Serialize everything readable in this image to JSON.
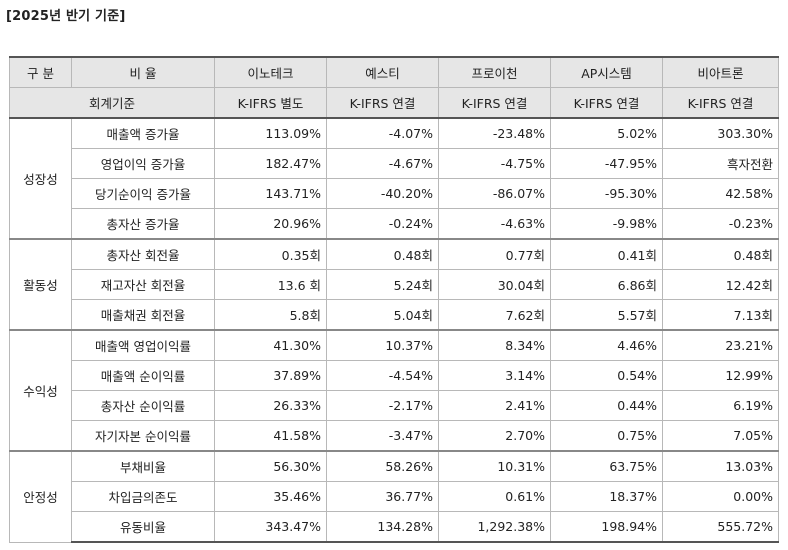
{
  "caption": "[2025년 반기 기준]",
  "header": {
    "group_col": "구 분",
    "ratio_col": "비 율",
    "companies": [
      "이노테크",
      "예스티",
      "프로이천",
      "AP시스템",
      "비아트론"
    ]
  },
  "subheader": {
    "label": "회계기준",
    "standards": [
      "K-IFRS 별도",
      "K-IFRS 연결",
      "K-IFRS 연결",
      "K-IFRS 연결",
      "K-IFRS 연결"
    ]
  },
  "groups": [
    {
      "name": "성장성",
      "rows": [
        {
          "label": "매출액 증가율",
          "values": [
            "113.09%",
            "-4.07%",
            "-23.48%",
            "5.02%",
            "303.30%"
          ]
        },
        {
          "label": "영업이익 증가율",
          "values": [
            "182.47%",
            "-4.67%",
            "-4.75%",
            "-47.95%",
            "흑자전환"
          ]
        },
        {
          "label": "당기순이익 증가율",
          "values": [
            "143.71%",
            "-40.20%",
            "-86.07%",
            "-95.30%",
            "42.58%"
          ]
        },
        {
          "label": "총자산 증가율",
          "values": [
            "20.96%",
            "-0.24%",
            "-4.63%",
            "-9.98%",
            "-0.23%"
          ]
        }
      ]
    },
    {
      "name": "활동성",
      "rows": [
        {
          "label": "총자산 회전율",
          "values": [
            "0.35회",
            "0.48회",
            "0.77회",
            "0.41회",
            "0.48회"
          ]
        },
        {
          "label": "재고자산 회전율",
          "values": [
            "13.6 회",
            "5.24회",
            "30.04회",
            "6.86회",
            "12.42회"
          ]
        },
        {
          "label": "매출채권 회전율",
          "values": [
            "5.8회",
            "5.04회",
            "7.62회",
            "5.57회",
            "7.13회"
          ]
        }
      ]
    },
    {
      "name": "수익성",
      "rows": [
        {
          "label": "매출액 영업이익률",
          "values": [
            "41.30%",
            "10.37%",
            "8.34%",
            "4.46%",
            "23.21%"
          ]
        },
        {
          "label": "매출액 순이익률",
          "values": [
            "37.89%",
            "-4.54%",
            "3.14%",
            "0.54%",
            "12.99%"
          ]
        },
        {
          "label": "총자산 순이익률",
          "values": [
            "26.33%",
            "-2.17%",
            "2.41%",
            "0.44%",
            "6.19%"
          ]
        },
        {
          "label": "자기자본 순이익률",
          "values": [
            "41.58%",
            "-3.47%",
            "2.70%",
            "0.75%",
            "7.05%"
          ]
        }
      ]
    },
    {
      "name": "안정성",
      "rows": [
        {
          "label": "부채비율",
          "values": [
            "56.30%",
            "58.26%",
            "10.31%",
            "63.75%",
            "13.03%"
          ]
        },
        {
          "label": "차입금의존도",
          "values": [
            "35.46%",
            "36.77%",
            "0.61%",
            "18.37%",
            "0.00%"
          ]
        },
        {
          "label": "유동비율",
          "values": [
            "343.47%",
            "134.28%",
            "1,292.38%",
            "198.94%",
            "555.72%"
          ]
        }
      ]
    }
  ]
}
